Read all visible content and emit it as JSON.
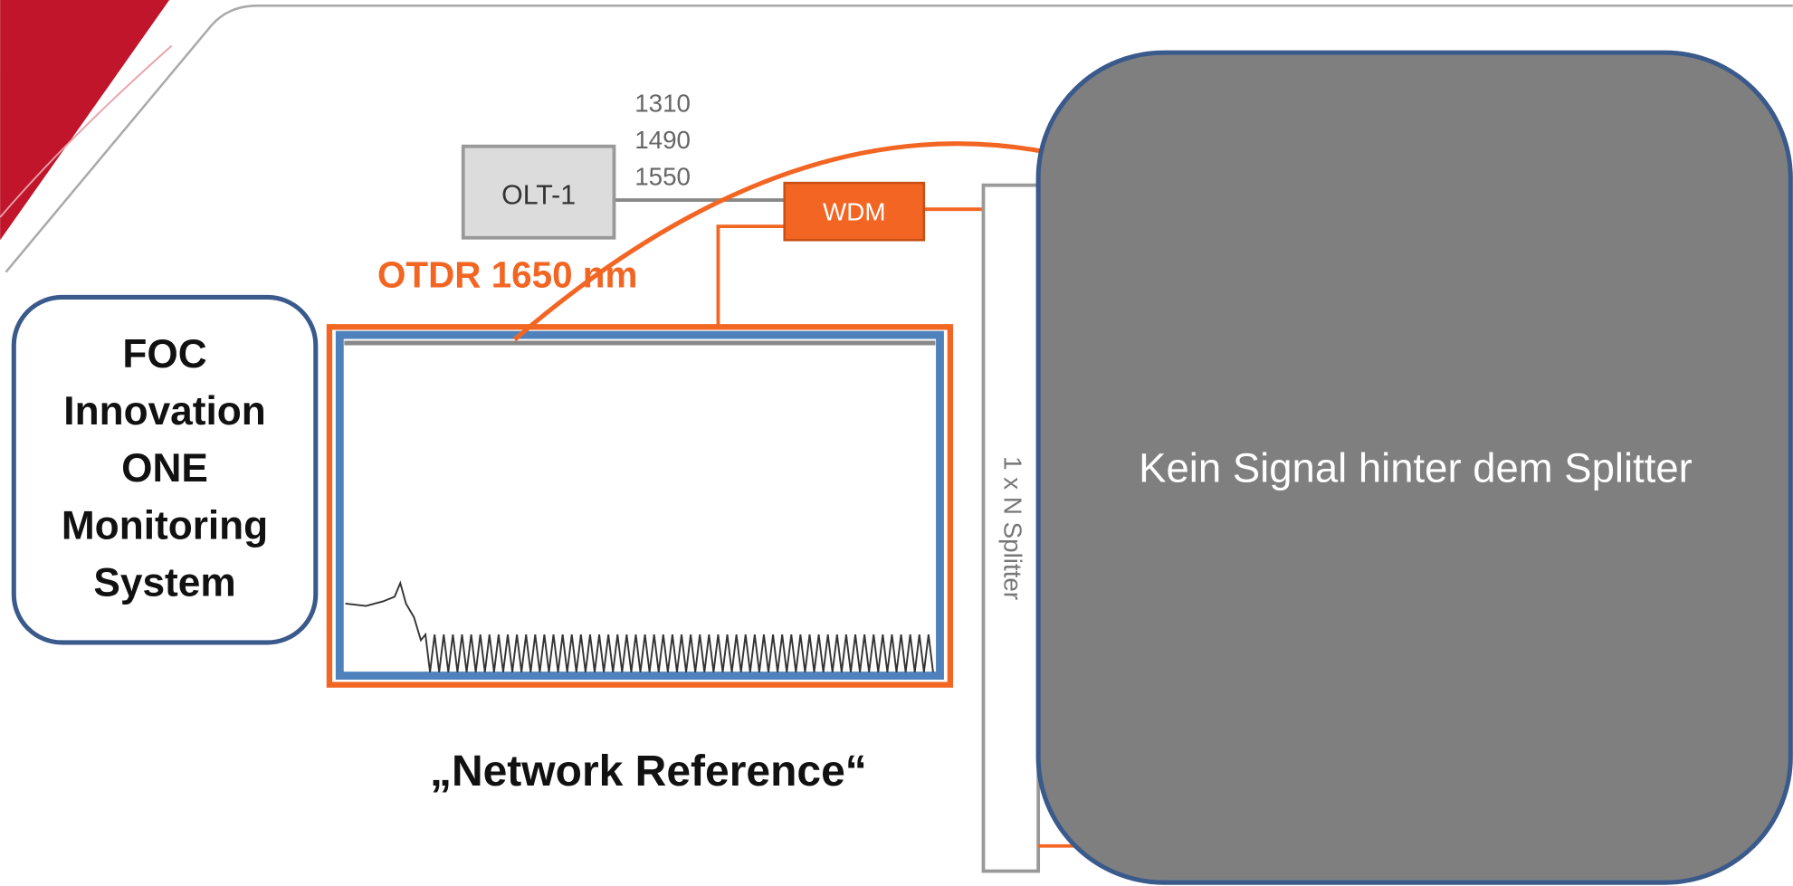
{
  "wavelengths": [
    "1310",
    "1490",
    "1550"
  ],
  "olt_label": "OLT-1",
  "wdm_label": "WDM",
  "otdr_label": "OTDR 1650 nm",
  "monitoring_box": {
    "lines": [
      "FOC",
      "Innovation",
      "ONE",
      "Monitoring",
      "System"
    ]
  },
  "caption": "„Network Reference“",
  "splitter_label": "1 x N Splitter",
  "overlay_text": "Kein Signal hinter dem Splitter"
}
